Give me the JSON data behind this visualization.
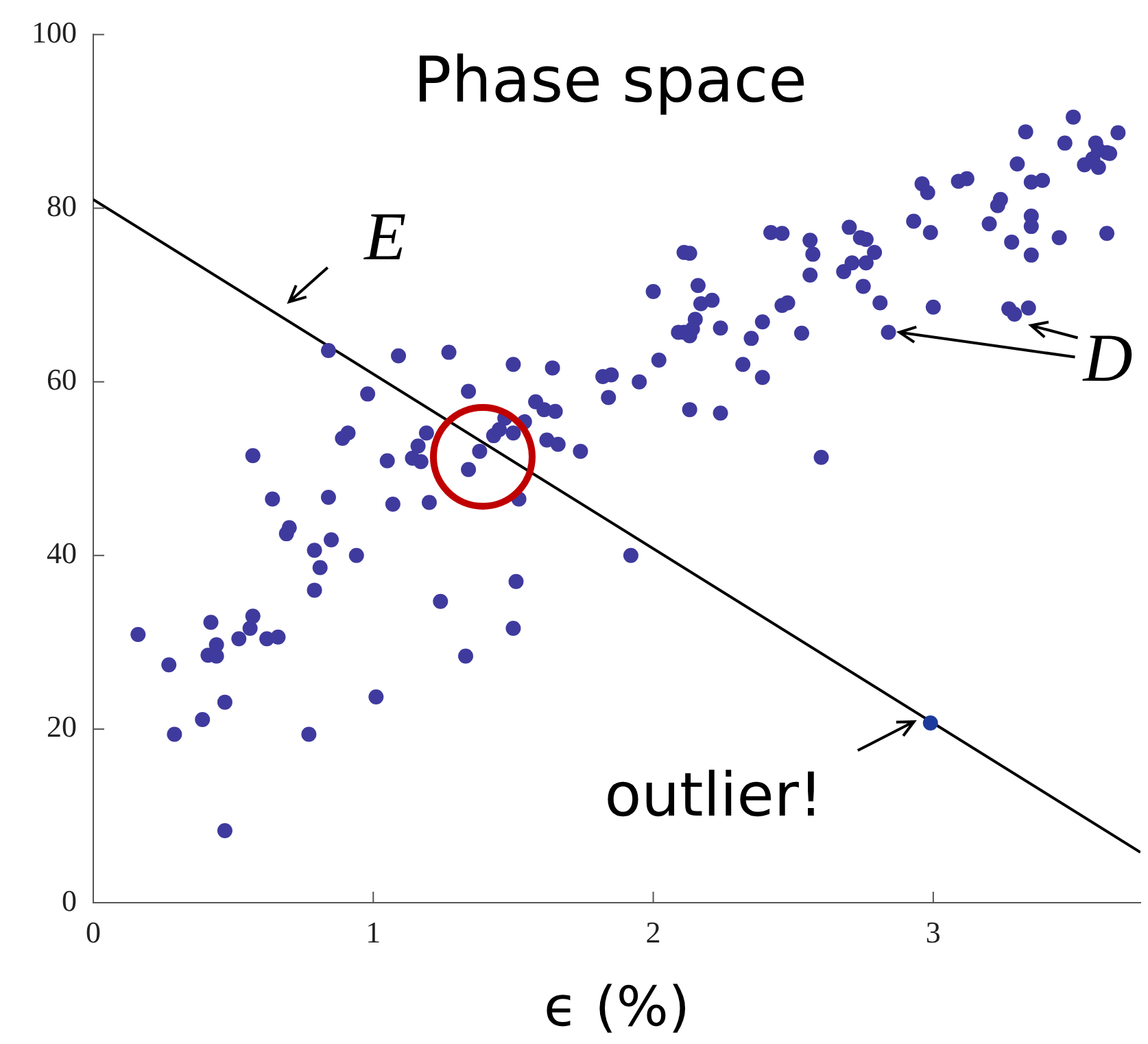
{
  "chart_data": {
    "type": "scatter",
    "title": "Phase space",
    "xlabel": "ϵ (%)",
    "xlim": [
      0,
      3.74
    ],
    "xticks": [
      0,
      1,
      2,
      3
    ],
    "ylim": [
      0,
      100
    ],
    "yticks": [
      0,
      20,
      40,
      60,
      80,
      100
    ],
    "annotations": [
      {
        "text": "E",
        "x": 0.7,
        "y": 67
      },
      {
        "text": "D",
        "x": 2.84,
        "y": 65.7
      },
      {
        "text": "outlier!",
        "x": 2.99,
        "y": 20.7
      }
    ],
    "series": [
      {
        "color": "#3f3a9e",
        "marker": "circle",
        "x": [
          0.16,
          0.27,
          0.29,
          0.39,
          0.42,
          0.41,
          0.44,
          0.44,
          0.47,
          0.47,
          0.52,
          0.56,
          0.57,
          0.57,
          0.62,
          0.66,
          0.64,
          0.69,
          0.7,
          0.77,
          0.79,
          0.79,
          0.81,
          0.84,
          0.85,
          0.84,
          0.89,
          0.91,
          0.94,
          0.98,
          1.01,
          1.05,
          1.07,
          1.09,
          1.14,
          1.16,
          1.17,
          1.19,
          1.2,
          1.24,
          1.27,
          1.33,
          1.34,
          1.34,
          1.38,
          1.43,
          1.45,
          1.47,
          1.5,
          1.5,
          1.51,
          1.5,
          1.52,
          1.54,
          1.58,
          1.61,
          1.62,
          1.64,
          1.65,
          1.66,
          1.74,
          1.82,
          1.85,
          1.84,
          1.92,
          1.95,
          2.0,
          2.02,
          2.09,
          2.11,
          2.13,
          2.11,
          2.13,
          2.14,
          2.13,
          2.15,
          2.16,
          2.17,
          2.21,
          2.24,
          2.24,
          2.32,
          2.35,
          2.39,
          2.39,
          2.42,
          2.46,
          2.46,
          2.48,
          2.53,
          2.56,
          2.57,
          2.56,
          2.6,
          2.68,
          2.7,
          2.71,
          2.74,
          2.76,
          2.76,
          2.75,
          2.79,
          2.81,
          2.84,
          2.93,
          2.96,
          2.98,
          2.99,
          3.0,
          3.09,
          3.12,
          3.2,
          3.23,
          3.24,
          3.28,
          3.27,
          3.29,
          3.3,
          3.33,
          3.34,
          3.35,
          3.35,
          3.35,
          3.35,
          3.39,
          3.45,
          3.47,
          3.5,
          3.54,
          3.57,
          3.58,
          3.59,
          3.59,
          3.62,
          3.62,
          3.63,
          3.66
        ],
        "values": [
          30.9,
          27.4,
          19.4,
          21.1,
          32.3,
          28.5,
          28.4,
          29.7,
          23.1,
          8.3,
          30.4,
          31.6,
          33.0,
          51.5,
          30.4,
          30.6,
          46.5,
          42.5,
          43.2,
          19.4,
          36.0,
          40.6,
          38.6,
          46.7,
          41.8,
          63.6,
          53.5,
          54.1,
          40.0,
          58.6,
          23.7,
          50.9,
          45.9,
          63.0,
          51.2,
          52.6,
          50.8,
          54.1,
          46.1,
          34.7,
          63.4,
          28.4,
          58.9,
          49.9,
          52.0,
          53.8,
          54.5,
          55.8,
          62.0,
          54.1,
          37.0,
          31.6,
          46.5,
          55.4,
          57.7,
          56.8,
          53.3,
          61.6,
          56.6,
          52.8,
          52.0,
          60.6,
          60.8,
          58.2,
          40.0,
          60.0,
          70.4,
          62.5,
          65.7,
          74.9,
          74.8,
          65.7,
          65.3,
          66.1,
          56.8,
          67.2,
          71.1,
          69.0,
          69.4,
          66.2,
          56.4,
          62.0,
          65.0,
          66.9,
          60.5,
          77.2,
          77.1,
          68.8,
          69.1,
          65.6,
          76.3,
          74.7,
          72.3,
          51.3,
          72.7,
          77.8,
          73.7,
          76.6,
          76.4,
          73.7,
          71.0,
          74.9,
          69.1,
          65.7,
          78.5,
          82.8,
          81.8,
          77.2,
          68.6,
          83.1,
          83.4,
          78.2,
          80.3,
          81.0,
          76.1,
          68.4,
          67.8,
          85.1,
          88.8,
          68.5,
          79.1,
          77.9,
          74.6,
          83.0,
          83.2,
          76.6,
          87.5,
          90.5,
          85.0,
          85.7,
          87.5,
          86.7,
          84.7,
          77.1,
          86.4,
          86.3,
          88.7
        ]
      },
      {
        "color": "#1c3a9c",
        "marker": "circle",
        "x": [
          2.99
        ],
        "values": [
          20.7
        ]
      },
      {
        "type": "line",
        "marker": "none",
        "color": "#000000",
        "x": [
          0,
          3.74
        ],
        "values": [
          81,
          5.8
        ]
      }
    ]
  }
}
